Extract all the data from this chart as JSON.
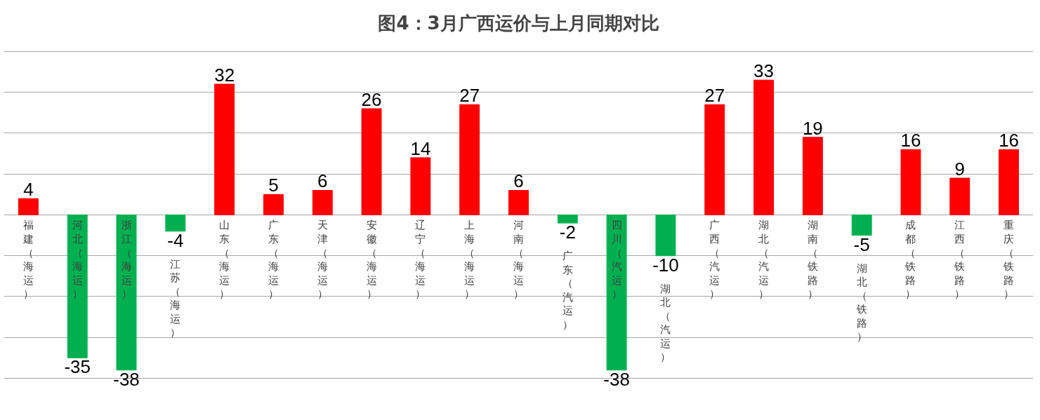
{
  "chart_data": {
    "type": "bar",
    "title": "图4：3月广西运价与上月同期对比",
    "categories": [
      "福建（海运）",
      "河北（海运）",
      "浙江（海运）",
      "江苏（海运）",
      "山东（海运）",
      "广东（海运）",
      "天津（海运）",
      "安徽（海运）",
      "辽宁（海运）",
      "上海（海运）",
      "河南（海运）",
      "广东（汽运）",
      "四川（汽运）",
      "湖北（汽运）",
      "广西（汽运）",
      "湖北（汽运）",
      "湖南（铁路）",
      "湖北（铁路）",
      "成都（铁路）",
      "江西（铁路）",
      "重庆（铁路）"
    ],
    "values": [
      4,
      -35,
      -38,
      -4,
      32,
      5,
      6,
      26,
      14,
      27,
      6,
      -2,
      -38,
      -10,
      27,
      33,
      19,
      -5,
      16,
      9,
      16
    ],
    "colors": [
      "#ff0000",
      "#00b050",
      "#00b050",
      "#00b050",
      "#ff0000",
      "#ff0000",
      "#ff0000",
      "#ff0000",
      "#ff0000",
      "#ff0000",
      "#ff0000",
      "#00b050",
      "#00b050",
      "#00b050",
      "#ff0000",
      "#ff0000",
      "#ff0000",
      "#00b050",
      "#ff0000",
      "#ff0000",
      "#ff0000"
    ],
    "grid": "y",
    "data_labels": true,
    "tick_labels": "x"
  }
}
